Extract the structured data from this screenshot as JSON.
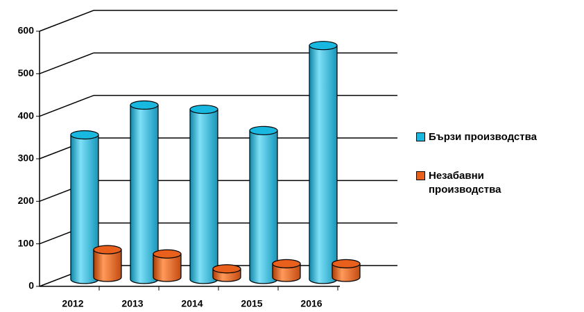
{
  "chart_data": {
    "type": "bar3d",
    "categories": [
      "2012",
      "2013",
      "2014",
      "2015",
      "2016"
    ],
    "series": [
      {
        "name": "Бързи производства",
        "color": "#19b8e0",
        "values": [
          340,
          410,
          400,
          350,
          550
        ]
      },
      {
        "name": "Незабавни производства",
        "color": "#e8601c",
        "values": [
          65,
          55,
          20,
          32,
          32
        ]
      }
    ],
    "ylim": [
      0,
      600
    ],
    "yticks": [
      0,
      100,
      200,
      300,
      400,
      500,
      600
    ],
    "grid": true
  }
}
